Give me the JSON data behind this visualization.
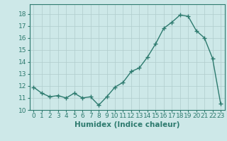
{
  "x": [
    0,
    1,
    2,
    3,
    4,
    5,
    6,
    7,
    8,
    9,
    10,
    11,
    12,
    13,
    14,
    15,
    16,
    17,
    18,
    19,
    20,
    21,
    22,
    23
  ],
  "y": [
    11.9,
    11.4,
    11.1,
    11.2,
    11.0,
    11.4,
    11.0,
    11.1,
    10.4,
    11.1,
    11.9,
    12.3,
    13.2,
    13.5,
    14.4,
    15.5,
    16.8,
    17.3,
    17.9,
    17.8,
    16.6,
    16.0,
    14.3,
    10.5
  ],
  "xlabel": "Humidex (Indice chaleur)",
  "xlim": [
    -0.5,
    23.5
  ],
  "ylim": [
    10,
    18.8
  ],
  "yticks": [
    10,
    11,
    12,
    13,
    14,
    15,
    16,
    17,
    18
  ],
  "xticks": [
    0,
    1,
    2,
    3,
    4,
    5,
    6,
    7,
    8,
    9,
    10,
    11,
    12,
    13,
    14,
    15,
    16,
    17,
    18,
    19,
    20,
    21,
    22,
    23
  ],
  "line_color": "#2d7a6e",
  "marker_color": "#2d7a6e",
  "bg_color": "#cde8e8",
  "grid_color": "#b0cccc",
  "axis_color": "#2d7a6e",
  "tick_color": "#2d7a6e",
  "label_color": "#2d7a6e",
  "font_size": 6.5,
  "xlabel_fontsize": 7.5,
  "marker_size": 4.0,
  "line_width": 1.0
}
